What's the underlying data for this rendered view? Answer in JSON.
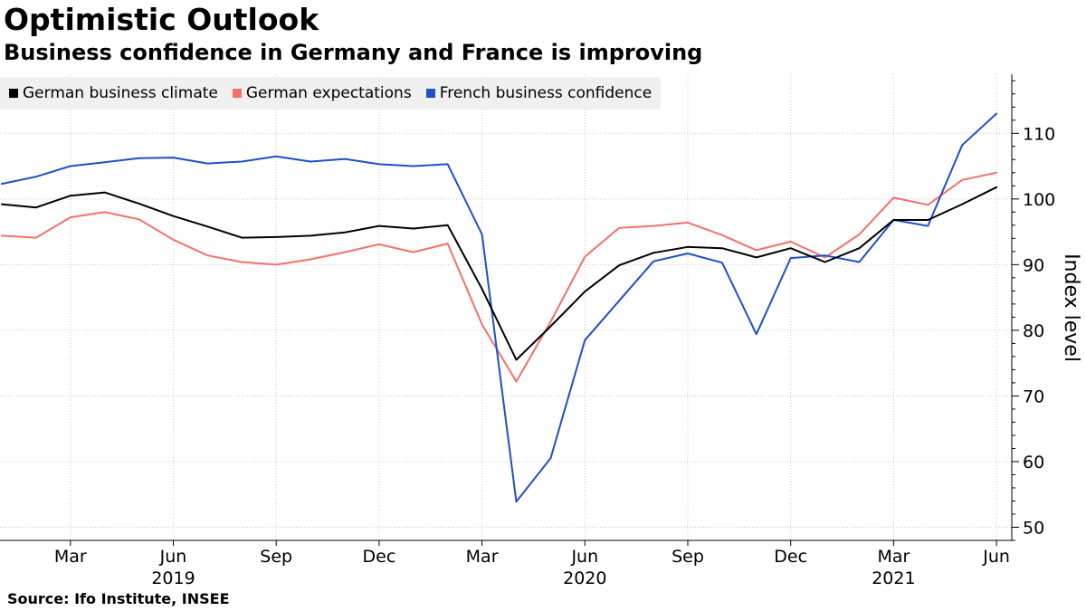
{
  "header": {
    "title": "Optimistic Outlook",
    "subtitle": "Business confidence in Germany and France is improving"
  },
  "footer": {
    "source": "Source: Ifo Institute, INSEE"
  },
  "colors": {
    "german_climate": "#000000",
    "german_expectations": "#f4706a",
    "french_confidence": "#1f4fc8",
    "grid": "#c8c8c8"
  },
  "chart_data": {
    "type": "line",
    "title": "Optimistic Outlook",
    "subtitle": "Business confidence in Germany and France is improving",
    "xlabel": "",
    "ylabel": "Index level",
    "ylim": [
      48,
      119
    ],
    "yticks": [
      50,
      60,
      70,
      80,
      90,
      100,
      110
    ],
    "grid": true,
    "legend_position": "top-left",
    "x": [
      "Jan 2019",
      "Feb 2019",
      "Mar 2019",
      "Apr 2019",
      "May 2019",
      "Jun 2019",
      "Jul 2019",
      "Aug 2019",
      "Sep 2019",
      "Oct 2019",
      "Nov 2019",
      "Dec 2019",
      "Jan 2020",
      "Feb 2020",
      "Mar 2020",
      "Apr 2020",
      "May 2020",
      "Jun 2020",
      "Jul 2020",
      "Aug 2020",
      "Sep 2020",
      "Oct 2020",
      "Nov 2020",
      "Dec 2020",
      "Jan 2021",
      "Feb 2021",
      "Mar 2021",
      "Apr 2021",
      "May 2021",
      "Jun 2021"
    ],
    "x_tick_labels": [
      {
        "index": 2,
        "label": "Mar"
      },
      {
        "index": 5,
        "label": "Jun"
      },
      {
        "index": 8,
        "label": "Sep"
      },
      {
        "index": 11,
        "label": "Dec"
      },
      {
        "index": 14,
        "label": "Mar"
      },
      {
        "index": 17,
        "label": "Jun"
      },
      {
        "index": 20,
        "label": "Sep"
      },
      {
        "index": 23,
        "label": "Dec"
      },
      {
        "index": 26,
        "label": "Mar"
      },
      {
        "index": 29,
        "label": "Jun"
      }
    ],
    "year_labels": [
      {
        "index": 5,
        "label": "2019"
      },
      {
        "index": 17,
        "label": "2020"
      },
      {
        "index": 26,
        "label": "2021"
      }
    ],
    "series": [
      {
        "name": "German business climate",
        "color": "#000000",
        "values": [
          99.2,
          98.7,
          100.5,
          101.0,
          99.3,
          97.4,
          95.8,
          94.1,
          94.2,
          94.4,
          94.9,
          95.9,
          95.5,
          96.0,
          86.3,
          75.5,
          80.6,
          85.9,
          89.9,
          91.8,
          92.7,
          92.5,
          91.1,
          92.5,
          90.4,
          92.5,
          96.8,
          96.8,
          99.2,
          101.8
        ]
      },
      {
        "name": "German expectations",
        "color": "#f4706a",
        "values": [
          94.4,
          94.1,
          97.2,
          98.0,
          96.9,
          93.8,
          91.4,
          90.4,
          90.0,
          90.8,
          91.9,
          93.1,
          91.9,
          93.2,
          80.9,
          72.2,
          81.3,
          91.2,
          95.6,
          95.9,
          96.4,
          94.5,
          92.2,
          93.5,
          91.1,
          94.6,
          100.2,
          99.1,
          102.9,
          104.0
        ]
      },
      {
        "name": "French business confidence",
        "color": "#1f4fc8",
        "values": [
          102.3,
          103.4,
          105.0,
          105.6,
          106.2,
          106.3,
          105.4,
          105.7,
          106.5,
          105.7,
          106.1,
          105.3,
          105.0,
          105.3,
          94.6,
          53.9,
          60.5,
          78.5,
          84.5,
          90.5,
          91.7,
          90.3,
          79.4,
          91.0,
          91.4,
          90.4,
          96.8,
          95.9,
          108.2,
          113.0
        ]
      }
    ]
  }
}
